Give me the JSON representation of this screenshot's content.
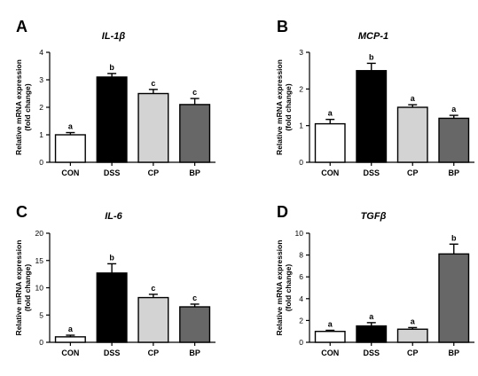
{
  "chart_data": [
    {
      "type": "bar",
      "panel": "A",
      "title": "IL-1β",
      "ylabel": [
        "Relative mRNA expression",
        "(fold change)"
      ],
      "ylim": [
        0,
        4
      ],
      "yticks": [
        0,
        1,
        2,
        3,
        4
      ],
      "categories": [
        "CON",
        "DSS",
        "CP",
        "BP"
      ],
      "values": [
        1.0,
        3.1,
        2.5,
        2.1
      ],
      "errors": [
        0.08,
        0.13,
        0.15,
        0.22
      ],
      "significance": [
        "a",
        "b",
        "c",
        "c"
      ],
      "colors": [
        "#ffffff",
        "#000000",
        "#d3d3d3",
        "#676767"
      ]
    },
    {
      "type": "bar",
      "panel": "B",
      "title": "MCP-1",
      "ylabel": [
        "Relative mRNA expression",
        "(fold change)"
      ],
      "ylim": [
        0,
        3
      ],
      "yticks": [
        0,
        1,
        2,
        3
      ],
      "categories": [
        "CON",
        "DSS",
        "CP",
        "BP"
      ],
      "values": [
        1.05,
        2.5,
        1.5,
        1.2
      ],
      "errors": [
        0.12,
        0.2,
        0.07,
        0.08
      ],
      "significance": [
        "a",
        "b",
        "a",
        "a"
      ],
      "colors": [
        "#ffffff",
        "#000000",
        "#d3d3d3",
        "#676767"
      ]
    },
    {
      "type": "bar",
      "panel": "C",
      "title": "IL-6",
      "ylabel": [
        "Relative mRNA expression",
        "(fold change)"
      ],
      "ylim": [
        0,
        20
      ],
      "yticks": [
        0,
        5,
        10,
        15,
        20
      ],
      "categories": [
        "CON",
        "DSS",
        "CP",
        "BP"
      ],
      "values": [
        1.0,
        12.7,
        8.2,
        6.5
      ],
      "errors": [
        0.3,
        1.7,
        0.6,
        0.5
      ],
      "significance": [
        "a",
        "b",
        "c",
        "c"
      ],
      "colors": [
        "#ffffff",
        "#000000",
        "#d3d3d3",
        "#676767"
      ]
    },
    {
      "type": "bar",
      "panel": "D",
      "title": "TGFβ",
      "ylabel": [
        "Relative mRNA expression",
        "(fold change)"
      ],
      "ylim": [
        0,
        10
      ],
      "yticks": [
        0,
        2,
        4,
        6,
        8,
        10
      ],
      "categories": [
        "CON",
        "DSS",
        "CP",
        "BP"
      ],
      "values": [
        1.0,
        1.5,
        1.2,
        8.1
      ],
      "errors": [
        0.1,
        0.3,
        0.15,
        0.9
      ],
      "significance": [
        "a",
        "a",
        "a",
        "b"
      ],
      "colors": [
        "#ffffff",
        "#000000",
        "#d3d3d3",
        "#676767"
      ]
    }
  ]
}
